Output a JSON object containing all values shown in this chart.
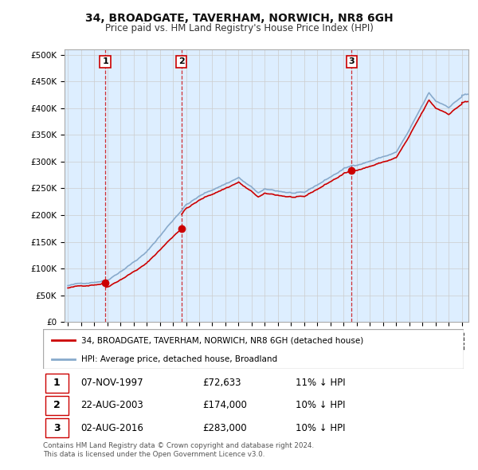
{
  "title_line1": "34, BROADGATE, TAVERHAM, NORWICH, NR8 6GH",
  "title_line2": "Price paid vs. HM Land Registry's House Price Index (HPI)",
  "yticks": [
    0,
    50000,
    100000,
    150000,
    200000,
    250000,
    300000,
    350000,
    400000,
    450000,
    500000
  ],
  "ytick_labels": [
    "£0",
    "£50K",
    "£100K",
    "£150K",
    "£200K",
    "£250K",
    "£300K",
    "£350K",
    "£400K",
    "£450K",
    "£500K"
  ],
  "xmin": 1994.75,
  "xmax": 2025.5,
  "ymin": 0,
  "ymax": 510000,
  "sale_dates": [
    1997.85,
    2003.64,
    2016.59
  ],
  "sale_prices": [
    72633,
    174000,
    283000
  ],
  "sale_labels": [
    "1",
    "2",
    "3"
  ],
  "sale_label_dates": [
    "07-NOV-1997",
    "22-AUG-2003",
    "02-AUG-2016"
  ],
  "sale_label_prices": [
    "£72,633",
    "£174,000",
    "£283,000"
  ],
  "sale_label_hpi": [
    "11% ↓ HPI",
    "10% ↓ HPI",
    "10% ↓ HPI"
  ],
  "legend_line1": "34, BROADGATE, TAVERHAM, NORWICH, NR8 6GH (detached house)",
  "legend_line2": "HPI: Average price, detached house, Broadland",
  "footer_line1": "Contains HM Land Registry data © Crown copyright and database right 2024.",
  "footer_line2": "This data is licensed under the Open Government Licence v3.0.",
  "price_line_color": "#cc0000",
  "hpi_line_color": "#88aacc",
  "vline_color": "#cc0000",
  "grid_color": "#cccccc",
  "chart_bg_color": "#ddeeff",
  "background_color": "#ffffff"
}
